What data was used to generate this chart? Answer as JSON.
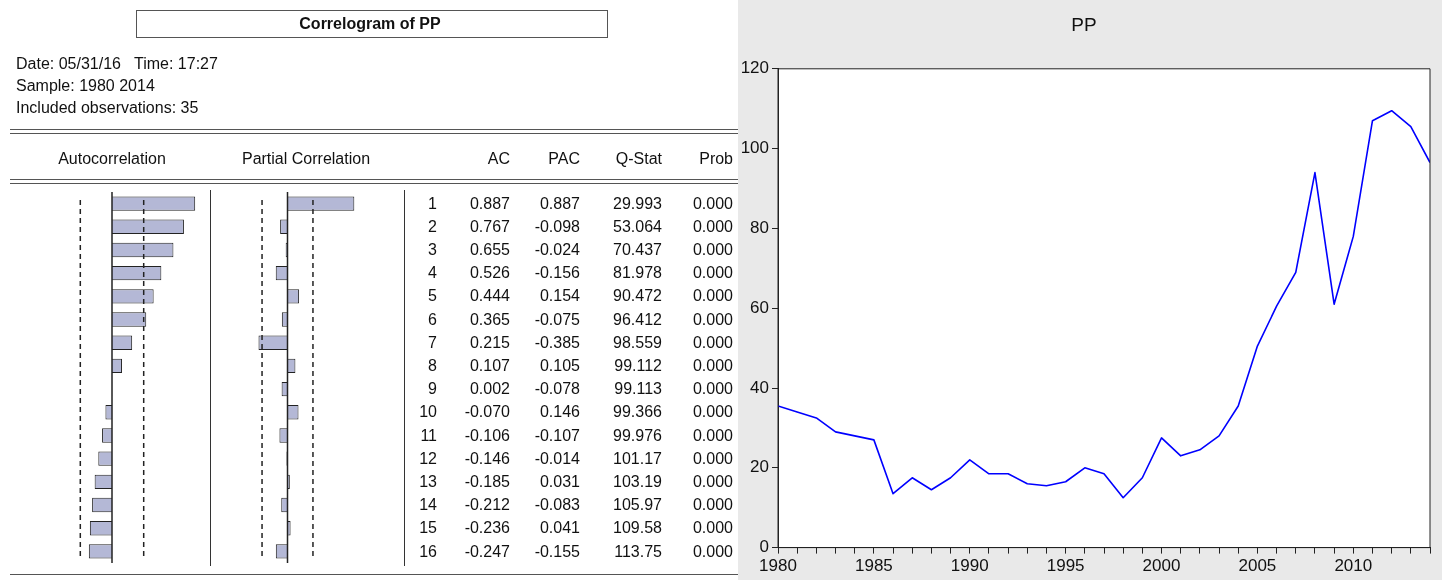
{
  "chart_data": [
    {
      "type": "other",
      "title": "Correlogram of PP",
      "annotations": [
        "Date: 05/31/16   Time: 17:27",
        "Sample: 1980 2014",
        "Included observations: 35"
      ]
    },
    {
      "type": "bar",
      "orientation": "horizontal",
      "title": "Autocorrelation",
      "annotations": [
        "AC"
      ],
      "categories": [
        "1",
        "2",
        "3",
        "4",
        "5",
        "6",
        "7",
        "8",
        "9",
        "10",
        "11",
        "12",
        "13",
        "14",
        "15",
        "16"
      ],
      "series": [
        {
          "color": "#b4b8d6",
          "values": [
            0.887,
            0.767,
            0.655,
            0.526,
            0.444,
            0.365,
            0.215,
            0.107,
            0.002,
            -0.07,
            -0.106,
            -0.146,
            -0.185,
            -0.212,
            -0.236,
            -0.247
          ],
          "value_labels": [
            "0.887",
            "0.767",
            "0.655",
            "0.526",
            "0.444",
            "0.365",
            "0.215",
            "0.107",
            "0.002",
            "-0.070",
            "-0.106",
            "-0.146",
            "-0.185",
            "-0.212",
            "-0.236",
            "-0.247"
          ]
        }
      ],
      "tick_labels": false,
      "grid": false,
      "ref_lines": [
        {
          "axis": "x",
          "value": -0.338,
          "line_style": "dashed"
        },
        {
          "axis": "x",
          "value": 0.338,
          "line_style": "dashed"
        }
      ]
    },
    {
      "type": "bar",
      "orientation": "horizontal",
      "title": "Partial Correlation",
      "annotations": [
        "PAC"
      ],
      "categories": [
        "1",
        "2",
        "3",
        "4",
        "5",
        "6",
        "7",
        "8",
        "9",
        "10",
        "11",
        "12",
        "13",
        "14",
        "15",
        "16"
      ],
      "series": [
        {
          "color": "#b4b8d6",
          "values": [
            0.887,
            -0.098,
            -0.024,
            -0.156,
            0.154,
            -0.075,
            -0.385,
            0.105,
            -0.078,
            0.146,
            -0.107,
            -0.014,
            0.031,
            -0.083,
            0.041,
            -0.155
          ],
          "value_labels": [
            "0.887",
            "-0.098",
            "-0.024",
            "-0.156",
            "0.154",
            "-0.075",
            "-0.385",
            "0.105",
            "-0.078",
            "0.146",
            "-0.107",
            "-0.014",
            "0.031",
            "-0.083",
            "0.041",
            "-0.155"
          ]
        }
      ],
      "tick_labels": "y",
      "grid": false,
      "ref_lines": [
        {
          "axis": "x",
          "value": -0.338,
          "line_style": "dashed"
        },
        {
          "axis": "x",
          "value": 0.338,
          "line_style": "dashed"
        }
      ]
    },
    {
      "type": "other",
      "annotations": [
        "Q-Stat",
        "29.993",
        "53.064",
        "70.437",
        "81.978",
        "90.472",
        "96.412",
        "98.559",
        "99.112",
        "99.113",
        "99.366",
        "99.976",
        "101.17",
        "103.19",
        "105.97",
        "109.58",
        "113.75",
        "Prob",
        "0.000",
        "0.000",
        "0.000",
        "0.000",
        "0.000",
        "0.000",
        "0.000",
        "0.000",
        "0.000",
        "0.000",
        "0.000",
        "0.000",
        "0.000",
        "0.000",
        "0.000",
        "0.000"
      ]
    },
    {
      "type": "line",
      "title": "PP",
      "x": [
        1980,
        1981,
        1982,
        1983,
        1984,
        1985,
        1986,
        1987,
        1988,
        1989,
        1990,
        1991,
        1992,
        1993,
        1994,
        1995,
        1996,
        1997,
        1998,
        1999,
        2000,
        2001,
        2002,
        2003,
        2004,
        2005,
        2006,
        2007,
        2008,
        2009,
        2010,
        2011,
        2012,
        2013,
        2014
      ],
      "series": [
        {
          "color": "#0000ff",
          "values": [
            35.5,
            34,
            32.5,
            29,
            28,
            27,
            13.5,
            17.5,
            14.5,
            17.5,
            22,
            18.5,
            18.5,
            16,
            15.5,
            16.5,
            20,
            18.5,
            12.5,
            17.5,
            27.5,
            23,
            24.5,
            28,
            35.5,
            50.5,
            60.5,
            69,
            94,
            61,
            78,
            107,
            109.5,
            105.5,
            96.5
          ]
        }
      ],
      "xlim": [
        1980,
        2014
      ],
      "xticks": [
        1980,
        {
          "value": 1981,
          "label": null
        },
        {
          "value": 1982,
          "label": null
        },
        {
          "value": 1983,
          "label": null
        },
        {
          "value": 1984,
          "label": null
        },
        1985,
        {
          "value": 1986,
          "label": null
        },
        {
          "value": 1987,
          "label": null
        },
        {
          "value": 1988,
          "label": null
        },
        {
          "value": 1989,
          "label": null
        },
        1990,
        {
          "value": 1991,
          "label": null
        },
        {
          "value": 1992,
          "label": null
        },
        {
          "value": 1993,
          "label": null
        },
        {
          "value": 1994,
          "label": null
        },
        1995,
        {
          "value": 1996,
          "label": null
        },
        {
          "value": 1997,
          "label": null
        },
        {
          "value": 1998,
          "label": null
        },
        {
          "value": 1999,
          "label": null
        },
        2000,
        {
          "value": 2001,
          "label": null
        },
        {
          "value": 2002,
          "label": null
        },
        {
          "value": 2003,
          "label": null
        },
        {
          "value": 2004,
          "label": null
        },
        2005,
        {
          "value": 2006,
          "label": null
        },
        {
          "value": 2007,
          "label": null
        },
        {
          "value": 2008,
          "label": null
        },
        {
          "value": 2009,
          "label": null
        },
        2010,
        {
          "value": 2011,
          "label": null
        },
        {
          "value": 2012,
          "label": null
        },
        {
          "value": 2013,
          "label": null
        },
        {
          "value": 2014,
          "label": null
        }
      ],
      "ylim": [
        0,
        120
      ],
      "yticks": [
        0,
        20,
        40,
        60,
        80,
        100,
        120
      ],
      "grid": false,
      "marker": "none",
      "line_style": "solid"
    }
  ]
}
